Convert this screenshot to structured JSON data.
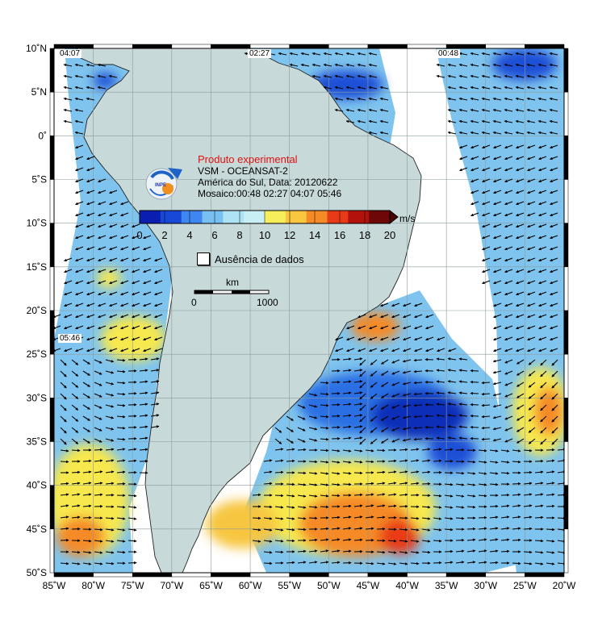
{
  "map": {
    "title": "Produto experimental",
    "product_line": "VSM - OCEANSAT-2",
    "region_line": "América do Sul, Data: 20120622",
    "mosaic_line": "Mosaico:00:48 02:27 04:07 05:46",
    "lat_ticks": [
      "10˚N",
      "5˚N",
      "0˚",
      "5˚S",
      "10˚S",
      "15˚S",
      "20˚S",
      "25˚S",
      "30˚S",
      "35˚S",
      "40˚S",
      "45˚S",
      "50˚S"
    ],
    "lon_ticks": [
      "85˚W",
      "80˚W",
      "75˚W",
      "70˚W",
      "65˚W",
      "60˚W",
      "55˚W",
      "50˚W",
      "45˚W",
      "40˚W",
      "35˚W",
      "30˚W",
      "25˚W",
      "20˚W"
    ],
    "pass_labels": [
      "04:07",
      "02:27",
      "00:48",
      "05:46"
    ],
    "colorbar": {
      "unit": "m/s",
      "ticks": [
        "0",
        "2",
        "4",
        "6",
        "8",
        "10",
        "12",
        "14",
        "16",
        "18",
        "20"
      ],
      "colors": [
        "#0a1fb0",
        "#1848d8",
        "#3f86f0",
        "#78bff2",
        "#aee3f6",
        "#c8f0f4",
        "#f6ee5a",
        "#f9c640",
        "#f58a26",
        "#e83a18",
        "#b3120c",
        "#6e0808"
      ]
    },
    "legend": {
      "no_data": "Ausência de dados"
    },
    "scale": {
      "unit": "km",
      "min": "0",
      "max": "1000"
    },
    "colors": {
      "land": "#c7d9d9",
      "ocean_base": "#7fc4ee",
      "strong": "#0d2fb8",
      "weak": "#f7e84d"
    }
  }
}
